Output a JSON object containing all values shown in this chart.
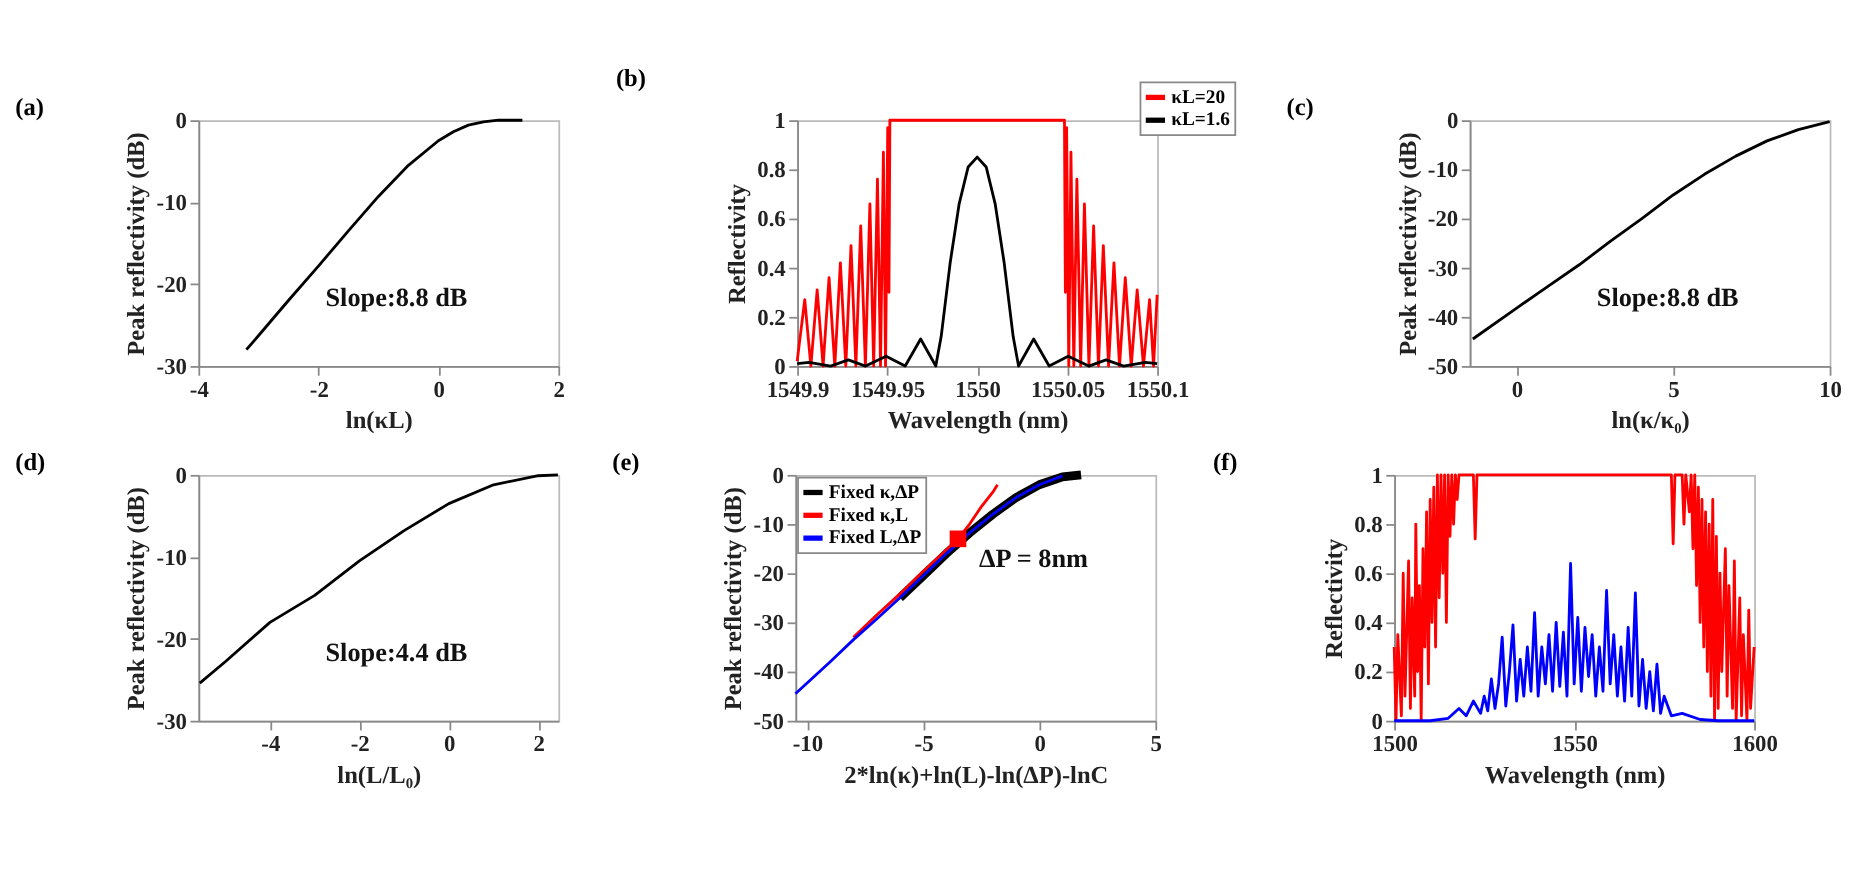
{
  "chart_data": [
    {
      "type": "line",
      "title": "(a)",
      "xlabel": "ln(κL)",
      "ylabel": "Peak reflectivity (dB)",
      "xlim": [
        -4,
        2
      ],
      "xticks": [
        -4,
        -2,
        0,
        2
      ],
      "ylim": [
        -30,
        0
      ],
      "yticks": [
        -30,
        -20,
        -10,
        0
      ],
      "annotations": [
        "Slope:8.8 dB"
      ],
      "series": [
        {
          "color": "#000000",
          "x": [
            -3.2,
            -3,
            -2.5,
            -2,
            -1.5,
            -1,
            -0.5,
            0,
            0.25,
            0.5,
            0.75,
            1,
            1.4
          ],
          "values": [
            -28,
            -26.3,
            -22,
            -17.8,
            -13.5,
            -9.3,
            -5.5,
            -2.5,
            -1.4,
            -0.6,
            -0.2,
            0,
            0
          ]
        }
      ]
    },
    {
      "type": "line",
      "title": "(b)",
      "xlabel": "Wavelength (nm)",
      "ylabel": "Reflectivity",
      "xlim": [
        1549.9,
        1550.1
      ],
      "xticks": [
        1549.9,
        1549.95,
        1550,
        1550.05,
        1550.1
      ],
      "ylim": [
        0,
        1
      ],
      "yticks": [
        0,
        0.2,
        0.4,
        0.6,
        0.8,
        1
      ],
      "legend": "top right",
      "series": [
        {
          "name": "κL=20",
          "color": "#ff0000",
          "x": [
            1549.9,
            1549.9042,
            1549.9076,
            1549.9111,
            1549.9144,
            1549.9177,
            1549.9209,
            1549.924,
            1549.927,
            1549.9299,
            1549.9326,
            1549.9353,
            1549.9379,
            1549.9404,
            1549.9425,
            1549.9446,
            1549.9463,
            1549.9479,
            1549.9491,
            1549.9503,
            1549.951,
            1549.9515,
            1550.0485,
            1550.049,
            1550.0497,
            1550.0509,
            1550.0521,
            1550.0537,
            1550.0554,
            1550.0575,
            1550.0596,
            1550.0621,
            1550.0647,
            1550.0674,
            1550.0701,
            1550.073,
            1550.076,
            1550.0791,
            1550.0823,
            1550.0856,
            1550.0889,
            1550.0924,
            1550.0958,
            1550.098,
            1550.1
          ],
          "values": [
            0.02,
            0.27,
            0,
            0.31,
            0,
            0.36,
            0,
            0.42,
            0,
            0.49,
            0,
            0.57,
            0,
            0.66,
            0,
            0.76,
            0,
            0.87,
            0,
            0.97,
            0.3,
            1,
            1,
            0.3,
            0.97,
            0,
            0.87,
            0,
            0.76,
            0,
            0.66,
            0,
            0.57,
            0,
            0.49,
            0,
            0.42,
            0,
            0.36,
            0,
            0.31,
            0,
            0.27,
            0,
            0.29
          ]
        },
        {
          "name": "κL=1.6",
          "color": "#000000",
          "x": [
            1549.9,
            1549.9066,
            1549.9186,
            1549.9284,
            1549.938,
            1549.9494,
            1549.96,
            1549.9686,
            1549.977,
            1549.98,
            1549.985,
            1549.99,
            1549.995,
            1550,
            1550.005,
            1550.01,
            1550.015,
            1550.02,
            1550.023,
            1550.0314,
            1550.04,
            1550.0506,
            1550.062,
            1550.0716,
            1550.0814,
            1550.0934,
            1550.1
          ],
          "values": [
            0.01,
            0.015,
            0,
            0.025,
            0,
            0.04,
            0,
            0.11,
            0,
            0.12,
            0.42,
            0.66,
            0.81,
            0.85,
            0.81,
            0.66,
            0.42,
            0.12,
            0,
            0.11,
            0,
            0.04,
            0,
            0.025,
            0,
            0.015,
            0.01
          ]
        }
      ]
    },
    {
      "type": "line",
      "title": "(c)",
      "xlabel": "ln(κ/κ₀)",
      "ylabel": "Peak reflectivity (dB)",
      "xlim": [
        -1.5,
        10
      ],
      "xticks": [
        0,
        5,
        10
      ],
      "ylim": [
        -50,
        0
      ],
      "yticks": [
        -50,
        -40,
        -30,
        -20,
        -10,
        0
      ],
      "annotations": [
        "Slope:8.8 dB"
      ],
      "series": [
        {
          "color": "#000000",
          "x": [
            -1.4,
            0,
            1,
            2,
            3,
            4,
            5,
            6,
            7,
            8,
            9,
            10
          ],
          "values": [
            -44.5,
            -38.2,
            -33.8,
            -29.4,
            -24.6,
            -20,
            -15.2,
            -11,
            -7.3,
            -4.2,
            -1.9,
            -0.3
          ]
        }
      ]
    },
    {
      "type": "line",
      "title": "(d)",
      "xlabel": "ln(L/L₀)",
      "ylabel": "Peak reflectivity (dB)",
      "xlim": [
        -5.6,
        2.45
      ],
      "xticks": [
        -4,
        -2,
        0,
        2
      ],
      "ylim": [
        -30,
        0
      ],
      "yticks": [
        -30,
        -20,
        -10,
        0
      ],
      "annotations": [
        "Slope:4.4 dB"
      ],
      "series": [
        {
          "color": "#000000",
          "x": [
            -5.57,
            -5,
            -4,
            -3,
            -2,
            -1,
            0,
            1,
            2,
            2.44
          ],
          "values": [
            -25.4,
            -22.8,
            -18,
            -14.7,
            -10.5,
            -6.8,
            -3.5,
            -1.2,
            -0.1,
            0
          ]
        }
      ]
    },
    {
      "type": "line",
      "title": "(e)",
      "xlabel": "2*ln(κ)+ln(L)-ln(ΔP)-lnC",
      "ylabel": "Peak reflectivity (dB)",
      "xlim": [
        -10.5,
        5
      ],
      "xticks": [
        -10,
        -5,
        0,
        5
      ],
      "ylim": [
        -50,
        0
      ],
      "yticks": [
        -50,
        -40,
        -30,
        -20,
        -10,
        0
      ],
      "legend": "top left",
      "annotations": [
        {
          "text": "ΔP = 8nm",
          "x": -3.5,
          "y": -13
        }
      ],
      "series": [
        {
          "name": "Fixed κ,ΔP",
          "color": "#000000",
          "x": [
            -6,
            -5,
            -4,
            -3,
            -2,
            -1,
            0,
            1,
            1.8
          ],
          "values": [
            -25,
            -20.5,
            -16,
            -11.8,
            -8,
            -4.6,
            -2,
            -0.4,
            0
          ]
        },
        {
          "name": "Fixed κ,L",
          "color": "#ff0000",
          "x": [
            -8,
            -7,
            -6,
            -5,
            -4,
            -3.5,
            -3,
            -2.5,
            -2,
            -1.8
          ],
          "values": [
            -33,
            -28.5,
            -24.2,
            -19.6,
            -15.2,
            -13,
            -10,
            -6.5,
            -3.5,
            -2
          ]
        },
        {
          "name": "Fixed L,ΔP",
          "color": "#0000ff",
          "x": [
            -10.5,
            -9,
            -8,
            -7,
            -6,
            -5,
            -4,
            -3,
            -2,
            -1,
            0,
            1
          ],
          "values": [
            -44.5,
            -38,
            -33.5,
            -29.3,
            -25,
            -20.5,
            -16,
            -11.8,
            -8,
            -4.6,
            -2,
            -0.2
          ]
        },
        {
          "type": "scatter",
          "marker": "square",
          "color": "#ff0000",
          "x": [
            -3.5
          ],
          "values": [
            -13
          ]
        }
      ]
    },
    {
      "type": "line",
      "title": "(f)",
      "xlabel": "Wavelength (nm)",
      "ylabel": "Reflectivity",
      "xlim": [
        1500,
        1600
      ],
      "xticks": [
        1500,
        1550,
        1600
      ],
      "ylim": [
        0,
        1
      ],
      "yticks": [
        0,
        0.2,
        0.4,
        0.6,
        0.8,
        1
      ],
      "series": [
        {
          "color": "#ff0000",
          "x": [
            1500,
            1500.5,
            1501,
            1502,
            1502.5,
            1503,
            1504,
            1504.5,
            1505,
            1505.7,
            1506,
            1506.5,
            1507,
            1507.5,
            1508,
            1508.5,
            1509,
            1509.5,
            1510,
            1510.5,
            1511,
            1511.5,
            1512,
            1512.5,
            1513,
            1513.5,
            1514,
            1514.5,
            1515,
            1515.5,
            1516,
            1516.5,
            1517,
            1517.5,
            1518,
            1522,
            1522.5,
            1523,
            1577,
            1577.5,
            1578,
            1580,
            1580.5,
            1581,
            1582,
            1582.5,
            1583,
            1583.5,
            1584,
            1584.5,
            1585,
            1585.5,
            1586,
            1586.5,
            1587,
            1587.5,
            1588,
            1588.5,
            1589,
            1589.5,
            1590,
            1590.5,
            1591,
            1592,
            1592.5,
            1593,
            1594,
            1594.5,
            1595,
            1596,
            1596.5,
            1597,
            1598,
            1598.5,
            1599,
            1600
          ],
          "values": [
            0.3,
            0,
            0.35,
            0.02,
            0.6,
            0.1,
            0.65,
            0.05,
            0.5,
            0.1,
            0.8,
            0.2,
            0.55,
            0,
            0.7,
            0.3,
            0.85,
            0.15,
            0.9,
            0.4,
            0.95,
            0.3,
            1,
            0.5,
            1,
            0.6,
            1,
            0.4,
            1,
            0.75,
            1,
            0.8,
            1,
            0.9,
            1,
            1,
            0.74,
            1,
            1,
            0.72,
            1,
            1,
            0.8,
            1,
            0.85,
            1,
            0.7,
            1,
            0.55,
            0.95,
            0.4,
            0.9,
            0.3,
            0.85,
            0.2,
            0.8,
            0.1,
            0.9,
            0,
            0.75,
            0.05,
            0.6,
            0.2,
            0.7,
            0.1,
            0.55,
            0.05,
            0.65,
            0,
            0.5,
            0.02,
            0.35,
            0,
            0.45,
            0.05,
            0.3
          ]
        },
        {
          "color": "#0000ff",
          "x": [
            1500,
            1510,
            1515,
            1518,
            1520,
            1522,
            1524,
            1525,
            1526,
            1527,
            1528,
            1529,
            1530,
            1531,
            1532,
            1533,
            1534,
            1535,
            1536,
            1537,
            1538,
            1539,
            1540,
            1541,
            1542,
            1543,
            1544,
            1545,
            1546,
            1547,
            1548,
            1549,
            1550,
            1551,
            1552,
            1553,
            1554,
            1555,
            1556,
            1557,
            1558,
            1559,
            1560,
            1561,
            1562,
            1563,
            1564,
            1565,
            1566,
            1567,
            1568,
            1569,
            1570,
            1571,
            1572,
            1573,
            1574,
            1575,
            1577,
            1580,
            1585,
            1590,
            1600
          ],
          "values": [
            0,
            0,
            0.01,
            0.05,
            0.02,
            0.08,
            0.03,
            0.1,
            0.04,
            0.17,
            0.05,
            0.15,
            0.34,
            0.06,
            0.2,
            0.39,
            0.08,
            0.25,
            0.1,
            0.3,
            0.12,
            0.44,
            0.1,
            0.3,
            0.15,
            0.35,
            0.12,
            0.4,
            0.14,
            0.36,
            0.1,
            0.64,
            0.15,
            0.42,
            0.12,
            0.38,
            0.18,
            0.35,
            0.1,
            0.3,
            0.12,
            0.53,
            0.15,
            0.35,
            0.1,
            0.3,
            0.08,
            0.38,
            0.1,
            0.52,
            0.06,
            0.25,
            0.05,
            0.2,
            0.04,
            0.23,
            0.03,
            0.1,
            0.02,
            0.03,
            0.005,
            0,
            0
          ]
        }
      ]
    }
  ]
}
